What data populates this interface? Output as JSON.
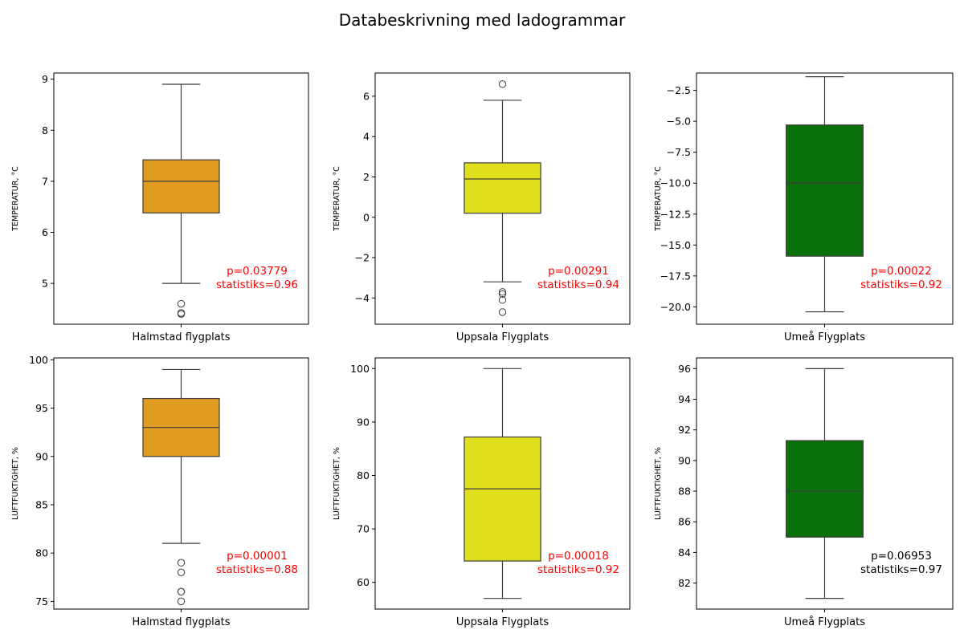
{
  "title": "Databeskrivning med ladogrammar",
  "chart_data": [
    {
      "type": "box",
      "category": "Halmstad flygplats",
      "ylabel": "TEMPERATUR, °C",
      "color": "#e09c21",
      "ylim": [
        4.2,
        9.12
      ],
      "yticks": [
        5,
        6,
        7,
        8,
        9
      ],
      "box": {
        "whisker_low": 5.0,
        "q1": 6.38,
        "median": 7.0,
        "q3": 7.42,
        "whisker_high": 8.9
      },
      "outliers": [
        4.6,
        4.4,
        4.42
      ],
      "annotation": {
        "p_text": "p=0.03779",
        "stat_text": "statistiks=0.96",
        "color": "#ff0000"
      }
    },
    {
      "type": "box",
      "category": "Uppsala Flygplats",
      "ylabel": "TEMPERATUR, °C",
      "color": "#dfdf1e",
      "ylim": [
        -5.3,
        7.15
      ],
      "yticks": [
        -4,
        -2,
        0,
        2,
        4,
        6
      ],
      "box": {
        "whisker_low": -3.2,
        "q1": 0.2,
        "median": 1.9,
        "q3": 2.7,
        "whisker_high": 5.8
      },
      "outliers": [
        6.6,
        -3.7,
        -3.8,
        -4.1,
        -4.7
      ],
      "annotation": {
        "p_text": "p=0.00291",
        "stat_text": "statistiks=0.94",
        "color": "#ff0000"
      }
    },
    {
      "type": "box",
      "category": "Umeå Flygplats",
      "ylabel": "TEMPERATUR, °C",
      "color": "#0a700a",
      "ylim": [
        -21.4,
        -1.1
      ],
      "yticks": [
        -20.0,
        -17.5,
        -15.0,
        -12.5,
        -10.0,
        -7.5,
        -5.0,
        -2.5
      ],
      "ytick_labels": [
        "−20.0",
        "−17.5",
        "−15.0",
        "−12.5",
        "−10.0",
        "−7.5",
        "−5.0",
        "−2.5"
      ],
      "box": {
        "whisker_low": -20.4,
        "q1": -15.9,
        "median": -10.0,
        "q3": -5.3,
        "whisker_high": -1.4
      },
      "outliers": [],
      "annotation": {
        "p_text": "p=0.00022",
        "stat_text": "statistiks=0.92",
        "color": "#ff0000"
      }
    },
    {
      "type": "box",
      "category": "Halmstad flygplats",
      "ylabel": "LUFTFUKTIGHET, %",
      "color": "#e09c21",
      "ylim": [
        74.2,
        100.2
      ],
      "yticks": [
        75,
        80,
        85,
        90,
        95,
        100
      ],
      "box": {
        "whisker_low": 81,
        "q1": 90,
        "median": 93,
        "q3": 96,
        "whisker_high": 99
      },
      "outliers": [
        79,
        78,
        76,
        76,
        75
      ],
      "annotation": {
        "p_text": "p=0.00001",
        "stat_text": "statistiks=0.88",
        "color": "#ff0000"
      }
    },
    {
      "type": "box",
      "category": "Uppsala Flygplats",
      "ylabel": "LUFTFUKTIGHET, %",
      "color": "#dfdf1e",
      "ylim": [
        55,
        102
      ],
      "yticks": [
        60,
        70,
        80,
        90,
        100
      ],
      "box": {
        "whisker_low": 57,
        "q1": 64,
        "median": 77.5,
        "q3": 87.2,
        "whisker_high": 100
      },
      "outliers": [],
      "annotation": {
        "p_text": "p=0.00018",
        "stat_text": "statistiks=0.92",
        "color": "#ff0000"
      }
    },
    {
      "type": "box",
      "category": "Umeå Flygplats",
      "ylabel": "LUFTFUKTIGHET, %",
      "color": "#0a700a",
      "ylim": [
        80.3,
        96.7
      ],
      "yticks": [
        82,
        84,
        86,
        88,
        90,
        92,
        94,
        96
      ],
      "box": {
        "whisker_low": 81,
        "q1": 85,
        "median": 88,
        "q3": 91.3,
        "whisker_high": 96
      },
      "outliers": [],
      "annotation": {
        "p_text": "p=0.06953",
        "stat_text": "statistiks=0.97",
        "color": "#000000"
      }
    }
  ]
}
